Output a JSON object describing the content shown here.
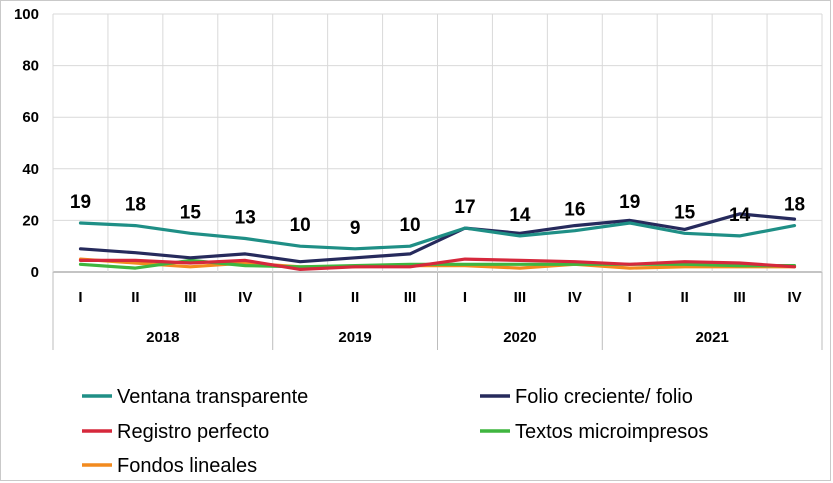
{
  "chart_data": {
    "type": "line",
    "title": "",
    "xlabel": "",
    "ylabel": "",
    "ylim": [
      0,
      100
    ],
    "y_ticks": [
      "0",
      "20",
      "40",
      "60",
      "80",
      "100"
    ],
    "grid": true,
    "legend_position": "bottom",
    "categories": [
      "I",
      "II",
      "III",
      "IV",
      "I",
      "II",
      "III",
      "I",
      "III",
      "IV",
      "I",
      "II",
      "III",
      "IV"
    ],
    "groups": [
      {
        "label": "2018",
        "count": 4
      },
      {
        "label": "2019",
        "count": 3
      },
      {
        "label": "2020",
        "count": 3
      },
      {
        "label": "2021",
        "count": 4
      }
    ],
    "series": [
      {
        "name": "Ventana transparente",
        "color": "#1f8f86",
        "values": [
          19,
          18,
          15,
          13,
          10,
          9,
          10,
          17,
          14,
          16,
          19,
          15,
          14,
          18
        ],
        "data_labels": [
          "19",
          "18",
          "15",
          "13",
          "10",
          "9",
          "10",
          "17",
          "14",
          "16",
          "19",
          "15",
          "14",
          "18"
        ]
      },
      {
        "name": "Folio creciente/ folio",
        "color": "#262a5c",
        "values": [
          9,
          7.5,
          5.5,
          7,
          4,
          5.5,
          7,
          17,
          15,
          18,
          20,
          16.5,
          22.5,
          20.5
        ]
      },
      {
        "name": "Registro perfecto",
        "color": "#d6283c",
        "values": [
          4.5,
          4.5,
          3.5,
          4.5,
          1,
          2,
          2,
          5,
          4.5,
          4,
          3,
          4,
          3.5,
          2
        ]
      },
      {
        "name": "Textos microimpresos",
        "color": "#3fb53f",
        "values": [
          3,
          1.5,
          4.5,
          2.5,
          2,
          2.5,
          3,
          3,
          3,
          3,
          3,
          3,
          2.5,
          2.5
        ]
      },
      {
        "name": "Fondos lineales",
        "color": "#f28a1e",
        "values": [
          5,
          3.5,
          2,
          3.5,
          2,
          2,
          2.5,
          2.5,
          1.5,
          3,
          1.5,
          2,
          2,
          2
        ]
      }
    ]
  }
}
